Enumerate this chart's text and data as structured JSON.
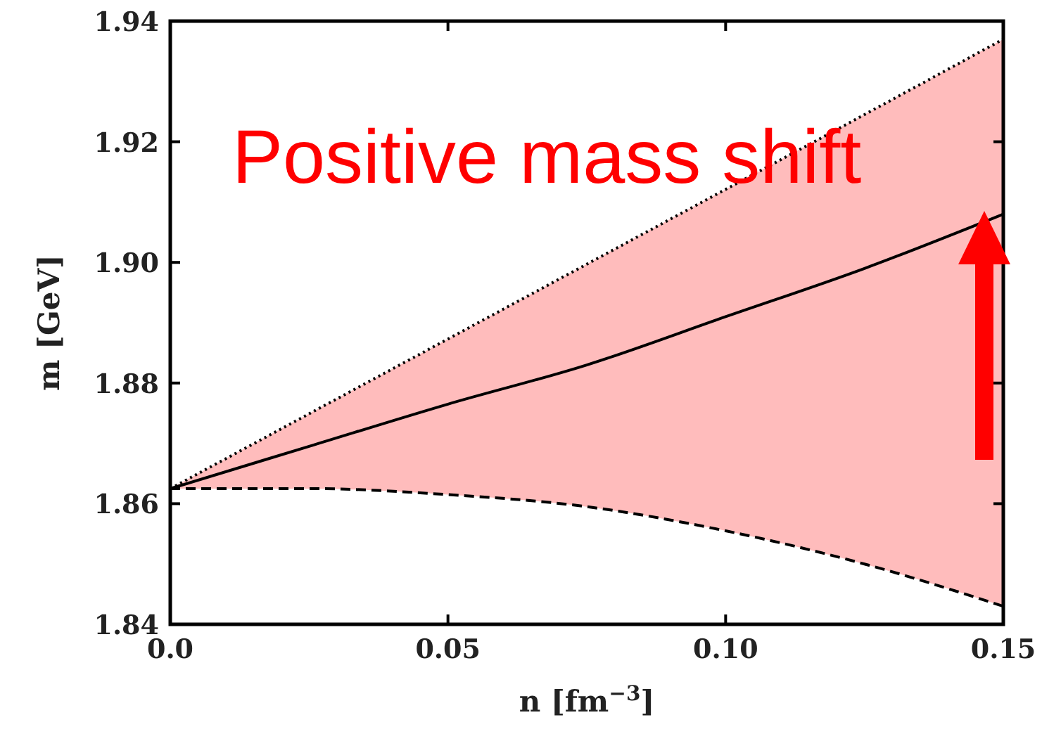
{
  "chart_data": {
    "type": "line",
    "xlabel": "n [fm$^{−3}$]",
    "ylabel": "m [GeV]",
    "x": [
      0,
      0.025,
      0.05,
      0.075,
      0.1,
      0.125,
      0.15
    ],
    "series": [
      {
        "color": "#000000",
        "line_style": "dotted",
        "values": [
          1.8625,
          1.8749,
          1.8873,
          1.8997,
          1.9121,
          1.9245,
          1.937
        ]
      },
      {
        "color": "#000000",
        "line_style": "solid",
        "values": [
          1.8625,
          1.8695,
          1.8765,
          1.883,
          1.891,
          1.899,
          1.908
        ],
        "lower": [
          1.8625,
          1.8625,
          1.8615,
          1.8595,
          1.8555,
          1.85,
          1.843
        ],
        "upper": [
          1.8625,
          1.8749,
          1.8873,
          1.8997,
          1.9121,
          1.9245,
          1.937
        ]
      },
      {
        "color": "#000000",
        "line_style": "dashed",
        "values": [
          1.8625,
          1.8625,
          1.8615,
          1.8595,
          1.8555,
          1.85,
          1.843
        ]
      }
    ],
    "xlim": [
      0,
      0.15
    ],
    "xticks": [
      {
        "value": 0,
        "label": "0.0"
      },
      0.05,
      {
        "value": 0.1,
        "label": "0.10"
      },
      0.15
    ],
    "ylim": [
      1.84,
      1.94
    ],
    "yticks": [
      1.84,
      1.86,
      1.88,
      {
        "value": 1.9,
        "label": "1.90"
      },
      1.92,
      1.94
    ],
    "grid": false,
    "annotations": [
      "Positive mass shift"
    ]
  }
}
